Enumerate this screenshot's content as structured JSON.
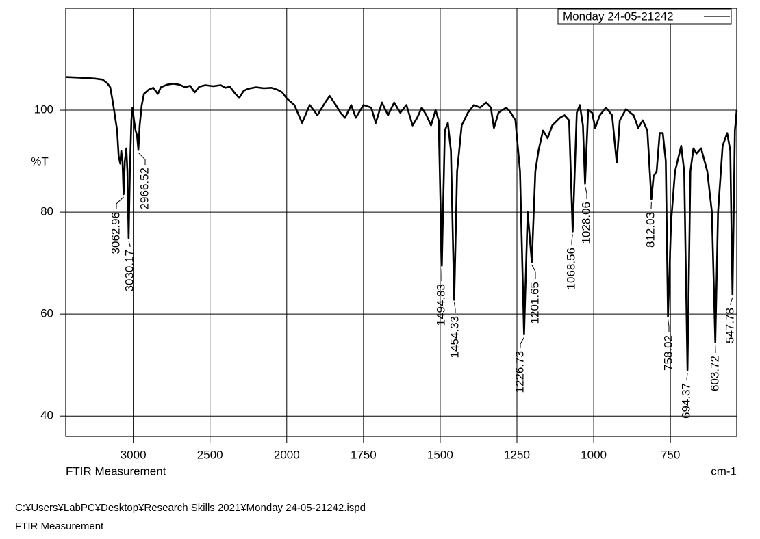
{
  "chart_data": {
    "type": "line",
    "ylabel": "%T",
    "xlabel": "FTIR Measurement",
    "xunit_label": "cm-1",
    "xlim": [
      3440,
      534
    ],
    "x_scale_change": 2000,
    "xticks": [
      3000,
      2500,
      2000,
      1750,
      1500,
      1250,
      1000,
      750
    ],
    "ylim": [
      36,
      120
    ],
    "yticks": [
      40,
      60,
      80,
      100
    ],
    "grid": true,
    "legend": "top-right",
    "x": [
      3440,
      3350,
      3250,
      3200,
      3170,
      3150,
      3130,
      3115,
      3105,
      3095,
      3085,
      3078,
      3070,
      3062.96,
      3055,
      3045,
      3038,
      3030.17,
      3022,
      3012,
      3005,
      2995,
      2985,
      2975,
      2966.52,
      2958,
      2945,
      2930,
      2900,
      2870,
      2840,
      2820,
      2780,
      2740,
      2700,
      2660,
      2630,
      2600,
      2570,
      2530,
      2480,
      2430,
      2400,
      2370,
      2340,
      2310,
      2280,
      2250,
      2200,
      2150,
      2100,
      2060,
      2030,
      2000,
      1975,
      1950,
      1925,
      1900,
      1875,
      1860,
      1840,
      1825,
      1810,
      1790,
      1775,
      1750,
      1725,
      1710,
      1690,
      1670,
      1650,
      1630,
      1610,
      1590,
      1575,
      1560,
      1545,
      1530,
      1515,
      1505,
      1494.83,
      1485,
      1475,
      1465,
      1454.33,
      1445,
      1430,
      1410,
      1390,
      1370,
      1350,
      1335,
      1325,
      1310,
      1285,
      1270,
      1255,
      1240,
      1226.73,
      1215,
      1201.65,
      1190,
      1180,
      1165,
      1150,
      1135,
      1110,
      1095,
      1080,
      1068.56,
      1055,
      1045,
      1035,
      1028.06,
      1018,
      1005,
      995,
      980,
      960,
      940,
      925,
      915,
      895,
      870,
      855,
      840,
      825,
      812.03,
      805,
      795,
      785,
      775,
      765,
      758.02,
      748,
      735,
      715,
      705,
      694.37,
      685,
      675,
      665,
      650,
      630,
      615,
      603.72,
      595,
      580,
      565,
      555,
      547.78,
      540,
      534
    ],
    "series": [
      {
        "name": "Monday 24-05-21242",
        "color": "#000000",
        "values": [
          106.5,
          106.4,
          106.2,
          106,
          105.3,
          104.5,
          101,
          98,
          96,
          91,
          89.5,
          92,
          90,
          83.5,
          90,
          92.5,
          88,
          74.9,
          88,
          98,
          100.5,
          98,
          96,
          95,
          92.2,
          97,
          101,
          103.2,
          104,
          104.4,
          103.2,
          104.5,
          105,
          105.2,
          105,
          104.5,
          104.8,
          103.5,
          104.6,
          104.9,
          104.7,
          104.9,
          104.4,
          104.6,
          103.4,
          102.4,
          103.8,
          104.2,
          104.5,
          104.3,
          104.4,
          104,
          103.5,
          102.3,
          101,
          97.5,
          101,
          99,
          101.5,
          102.8,
          101,
          99.5,
          98.5,
          101,
          98.5,
          101,
          100.5,
          97.5,
          101.5,
          99,
          101.5,
          99.5,
          101,
          97,
          98.5,
          100.5,
          99,
          97,
          100,
          98,
          69.5,
          96,
          97.5,
          92,
          62.8,
          88,
          97,
          99.5,
          101,
          100.5,
          101.5,
          100.5,
          96.5,
          99.5,
          100.5,
          99.5,
          98,
          88,
          56,
          80,
          70.2,
          88,
          92,
          96,
          94.5,
          97,
          98.5,
          99,
          98,
          76.2,
          99.5,
          101,
          97,
          85.6,
          100,
          99.5,
          96.5,
          99,
          100.5,
          99,
          89.7,
          98,
          100.2,
          99,
          96.5,
          98,
          96,
          82.5,
          87,
          88,
          95.5,
          95.5,
          90,
          59.5,
          78,
          88,
          93,
          88,
          49,
          88,
          92.5,
          91.5,
          92.5,
          88,
          80,
          54.4,
          80,
          93,
          95.5,
          92,
          63.8,
          96,
          100
        ]
      }
    ],
    "peaks": [
      {
        "x": 3062.96,
        "y": 83.5
      },
      {
        "x": 3030.17,
        "y": 74.9
      },
      {
        "x": 2966.52,
        "y": 92.2
      },
      {
        "x": 1494.83,
        "y": 69.5
      },
      {
        "x": 1454.33,
        "y": 62.8
      },
      {
        "x": 1226.73,
        "y": 56
      },
      {
        "x": 1201.65,
        "y": 70.2
      },
      {
        "x": 1068.56,
        "y": 76.2
      },
      {
        "x": 1028.06,
        "y": 85.6
      },
      {
        "x": 812.03,
        "y": 82.5
      },
      {
        "x": 758.02,
        "y": 59.5
      },
      {
        "x": 694.37,
        "y": 49
      },
      {
        "x": 603.72,
        "y": 54.4
      },
      {
        "x": 547.78,
        "y": 63.8
      }
    ]
  },
  "footer": [
    "C:¥Users¥LabPC¥Desktop¥Research Skills 2021¥Monday 24-05-21242.ispd",
    "FTIR Measurement"
  ]
}
